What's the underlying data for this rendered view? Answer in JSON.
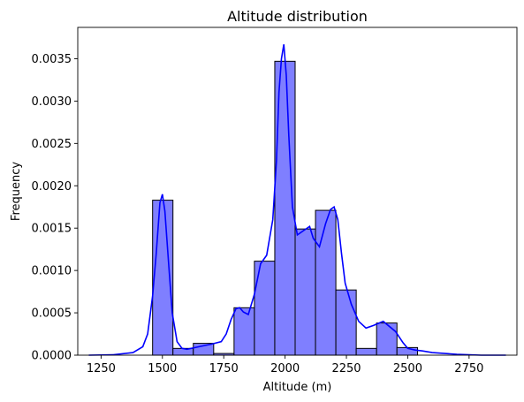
{
  "chart_data": {
    "type": "bar",
    "title": "Altitude distribution",
    "xlabel": "Altitude (m)",
    "ylabel": "Frequency",
    "xlim": [
      1155,
      2945
    ],
    "ylim": [
      0,
      0.00387
    ],
    "xticks": [
      "1250",
      "1500",
      "1750",
      "2000",
      "2250",
      "2500",
      "2750"
    ],
    "xtick_values": [
      1250,
      1500,
      1750,
      2000,
      2250,
      2500,
      2750
    ],
    "yticks": [
      "0.0000",
      "0.0005",
      "0.0010",
      "0.0015",
      "0.0020",
      "0.0025",
      "0.0030",
      "0.0035"
    ],
    "ytick_values": [
      0,
      0.0005,
      0.001,
      0.0015,
      0.002,
      0.0025,
      0.003,
      0.0035
    ],
    "bin_edges": [
      1460,
      1543,
      1626,
      1709,
      1792,
      1875,
      1958,
      2041,
      2124,
      2207,
      2290,
      2373,
      2456,
      2540
    ],
    "bar_values": [
      0.00183,
      8e-05,
      0.00014,
      2e-05,
      0.00056,
      0.00111,
      0.00347,
      0.00149,
      0.00171,
      0.00077,
      8e-05,
      0.00038,
      9e-05
    ],
    "bar_color": "#7f7fff",
    "bar_edge_color": "#000000",
    "kde_color": "#0000ff",
    "kde_x": [
      1200,
      1300,
      1380,
      1420,
      1440,
      1460,
      1475,
      1490,
      1500,
      1510,
      1525,
      1540,
      1560,
      1580,
      1600,
      1650,
      1700,
      1740,
      1760,
      1780,
      1800,
      1815,
      1830,
      1850,
      1875,
      1900,
      1925,
      1950,
      1965,
      1975,
      1985,
      1995,
      2005,
      2015,
      2030,
      2050,
      2080,
      2100,
      2115,
      2140,
      2165,
      2185,
      2200,
      2215,
      2230,
      2245,
      2270,
      2300,
      2330,
      2360,
      2400,
      2450,
      2480,
      2500,
      2530,
      2560,
      2600,
      2700,
      2800,
      2900
    ],
    "kde_y": [
      0,
      5e-06,
      3e-05,
      0.0001,
      0.00025,
      0.0007,
      0.0012,
      0.0018,
      0.0019,
      0.0017,
      0.0011,
      0.0005,
      0.00016,
      8e-05,
      7e-05,
      0.0001,
      0.00013,
      0.00016,
      0.00025,
      0.00042,
      0.00055,
      0.00056,
      0.00051,
      0.00048,
      0.00072,
      0.00108,
      0.00118,
      0.0016,
      0.0023,
      0.0031,
      0.0035,
      0.00367,
      0.0033,
      0.0026,
      0.00175,
      0.00142,
      0.00148,
      0.00152,
      0.00138,
      0.00128,
      0.00155,
      0.00172,
      0.00175,
      0.0016,
      0.0012,
      0.00085,
      0.0006,
      0.0004,
      0.00032,
      0.00035,
      0.0004,
      0.00028,
      0.00015,
      8e-05,
      6e-05,
      5e-05,
      3e-05,
      1e-05,
      0,
      0
    ]
  }
}
